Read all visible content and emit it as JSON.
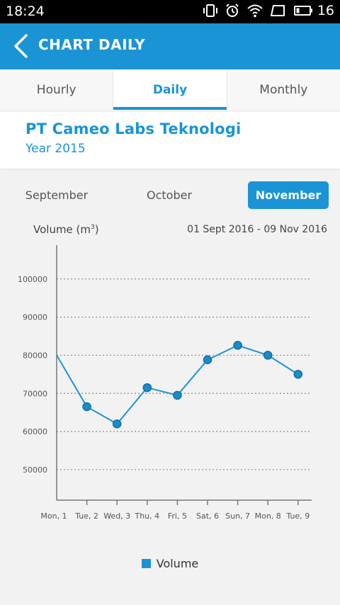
{
  "status_bar": {
    "time": "18:24",
    "battery_level": "16"
  },
  "app_bar": {
    "title": "CHART DAILY"
  },
  "tabs": [
    {
      "label": "Hourly",
      "active": false
    },
    {
      "label": "Daily",
      "active": true
    },
    {
      "label": "Monthly",
      "active": false
    }
  ],
  "company": {
    "name": "PT Cameo Labs Teknologi",
    "year": "Year 2015"
  },
  "months": {
    "september": "September",
    "october": "October",
    "november": "November",
    "selected": "November"
  },
  "chart_header": {
    "y_title_prefix": "Volume (m",
    "y_title_sup": "3",
    "y_title_suffix": ")",
    "date_range": "01 Sept 2016 - 09 Nov 2016"
  },
  "colors": {
    "accent": "#1a94d4",
    "point_fill": "#1a8ccc",
    "point_stroke": "#0f6f9f"
  },
  "chart_data": {
    "type": "line",
    "categories": [
      "Mon, 1",
      "Tue, 2",
      "Wed, 3",
      "Thu, 4",
      "Fri, 5",
      "Sat, 6",
      "Sun, 7",
      "Mon, 8",
      "Tue, 9"
    ],
    "series": [
      {
        "name": "Volume",
        "values": [
          80000,
          66500,
          62000,
          71500,
          69500,
          78800,
          82600,
          80000,
          75000
        ]
      }
    ],
    "y_ticks": [
      50000,
      60000,
      70000,
      80000,
      90000,
      100000
    ],
    "ylim": [
      42000,
      108500
    ],
    "grid": "dotted-horizontal",
    "legend": "bottom-center"
  }
}
